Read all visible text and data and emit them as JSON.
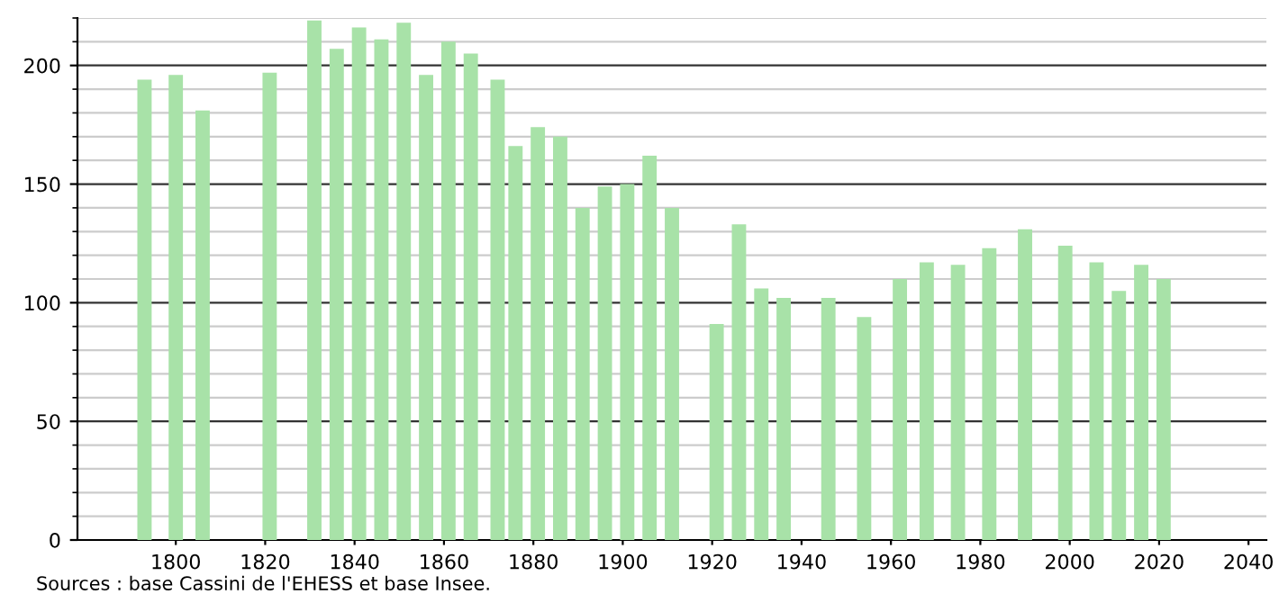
{
  "chart_data": {
    "type": "bar",
    "x": [
      1793,
      1800,
      1806,
      1821,
      1831,
      1836,
      1841,
      1846,
      1851,
      1856,
      1861,
      1866,
      1872,
      1876,
      1881,
      1886,
      1891,
      1896,
      1901,
      1906,
      1911,
      1921,
      1926,
      1931,
      1936,
      1946,
      1954,
      1962,
      1968,
      1975,
      1982,
      1990,
      1999,
      2006,
      2011,
      2016,
      2021
    ],
    "values": [
      194,
      196,
      181,
      197,
      219,
      207,
      216,
      211,
      218,
      196,
      210,
      205,
      194,
      166,
      174,
      170,
      140,
      149,
      150,
      162,
      140,
      91,
      133,
      106,
      102,
      102,
      94,
      110,
      117,
      116,
      123,
      131,
      124,
      117,
      105,
      116,
      110
    ],
    "color": "#a8e2a8",
    "xlim": [
      1778,
      2044
    ],
    "xticks": [
      1800,
      1820,
      1840,
      1860,
      1880,
      1900,
      1920,
      1940,
      1960,
      1980,
      2000,
      2020,
      2040
    ],
    "ylim": [
      0,
      220
    ],
    "yticks": [
      0,
      50,
      100,
      150,
      200
    ],
    "grid": "y",
    "annotations": [
      "Sources : base Cassini de l'EHESS et base Insee."
    ]
  }
}
